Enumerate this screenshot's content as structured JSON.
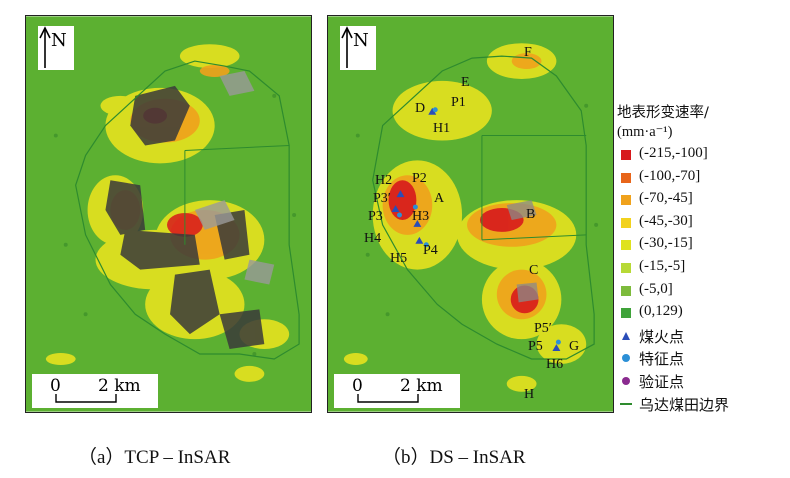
{
  "panel_a": {
    "north_label": "N",
    "scale_zero": "0",
    "scale_two": "2 km",
    "caption": "（a）TCP – InSAR"
  },
  "panel_b": {
    "north_label": "N",
    "scale_zero": "0",
    "scale_two": "2 km",
    "caption": "（b）DS – InSAR",
    "labels": {
      "E": "E",
      "F": "F",
      "D": "D",
      "P1": "P1",
      "H1": "H1",
      "H2": "H2",
      "P2": "P2",
      "A": "A",
      "P3prime": "P3′",
      "P3": "P3",
      "H3": "H3",
      "B": "B",
      "H4": "H4",
      "H5": "H5",
      "P4": "P4",
      "C": "C",
      "P5prime": "P5′",
      "P5": "P5",
      "G": "G",
      "H6": "H6",
      "H": "H"
    }
  },
  "legend": {
    "title_line1": "地表形变速率/",
    "title_line2": "(mm·a⁻¹)",
    "items": [
      {
        "label": "(-215,-100]",
        "color": "#d7191c",
        "shape": "square"
      },
      {
        "label": "(-100,-70]",
        "color": "#e8651a",
        "shape": "square"
      },
      {
        "label": "(-70,-45]",
        "color": "#f0a21c",
        "shape": "square"
      },
      {
        "label": "(-45,-30]",
        "color": "#f2d21e",
        "shape": "square"
      },
      {
        "label": "(-30,-15]",
        "color": "#dfe21e",
        "shape": "square"
      },
      {
        "label": "(-15,-5]",
        "color": "#b7d936",
        "shape": "square"
      },
      {
        "label": "(-5,0]",
        "color": "#7dbb3c",
        "shape": "square"
      },
      {
        "label": "(0,129)",
        "color": "#3fa33a",
        "shape": "square"
      },
      {
        "label": "煤火点",
        "color": "#2a4db8",
        "shape": "triangle"
      },
      {
        "label": "特征点",
        "color": "#2b8fd6",
        "shape": "circle"
      },
      {
        "label": "验证点",
        "color": "#8a2b8f",
        "shape": "circle"
      },
      {
        "label": "乌达煤田边界",
        "color": "#2e8b2e",
        "shape": "line"
      }
    ]
  }
}
